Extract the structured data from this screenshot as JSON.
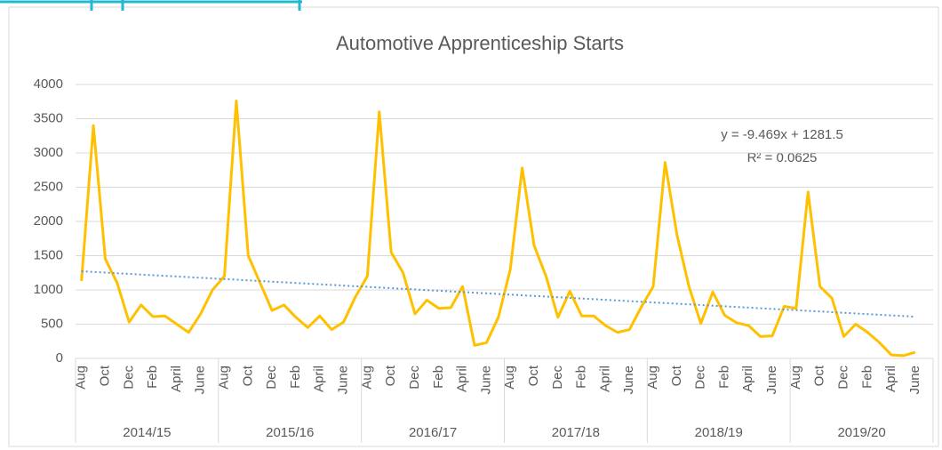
{
  "chart_data": {
    "type": "line",
    "title": "Automotive Apprenticeship Starts",
    "categories": [
      "Aug",
      null,
      "Oct",
      null,
      "Dec",
      null,
      "Feb",
      null,
      "April",
      null,
      "June",
      null,
      "Aug",
      null,
      "Oct",
      null,
      "Dec",
      null,
      "Feb",
      null,
      "April",
      null,
      "June",
      null,
      "Aug",
      null,
      "Oct",
      null,
      "Dec",
      null,
      "Feb",
      null,
      "April",
      null,
      "June",
      null,
      "Aug",
      null,
      "Oct",
      null,
      "Dec",
      null,
      "Feb",
      null,
      "April",
      null,
      "June",
      null,
      "Aug",
      null,
      "Oct",
      null,
      "Dec",
      null,
      "Feb",
      null,
      "April",
      null,
      "June",
      null,
      "Aug",
      null,
      "Oct",
      null,
      "Dec",
      null,
      "Feb",
      null,
      "April",
      null,
      "June"
    ],
    "category_groups": [
      "2014/15",
      "2015/16",
      "2016/17",
      "2017/18",
      "2018/19",
      "2019/20"
    ],
    "series": [
      {
        "name": "Starts",
        "color": "#ffc000",
        "values": [
          1130,
          3400,
          1450,
          1100,
          530,
          780,
          610,
          620,
          500,
          380,
          650,
          1000,
          1200,
          3760,
          1500,
          1100,
          700,
          780,
          600,
          450,
          620,
          420,
          530,
          900,
          1200,
          3600,
          1550,
          1250,
          650,
          850,
          730,
          740,
          1050,
          190,
          230,
          600,
          1300,
          2780,
          1650,
          1200,
          600,
          980,
          620,
          620,
          480,
          380,
          420,
          750,
          1050,
          2860,
          1800,
          1050,
          510,
          970,
          630,
          520,
          480,
          320,
          330,
          760,
          730,
          2430,
          1050,
          880,
          320,
          500,
          380,
          230,
          50,
          40,
          90
        ]
      }
    ],
    "trendline": {
      "slope": -9.469,
      "intercept": 1281.5,
      "color": "#5b9bd5",
      "label": "y = -9.469x + 1281.5",
      "r2_label": "R² = 0.0625"
    },
    "ylim": [
      0,
      4000
    ],
    "yticks": [
      0,
      500,
      1000,
      1500,
      2000,
      2500,
      3000,
      3500,
      4000
    ],
    "grid": true
  }
}
